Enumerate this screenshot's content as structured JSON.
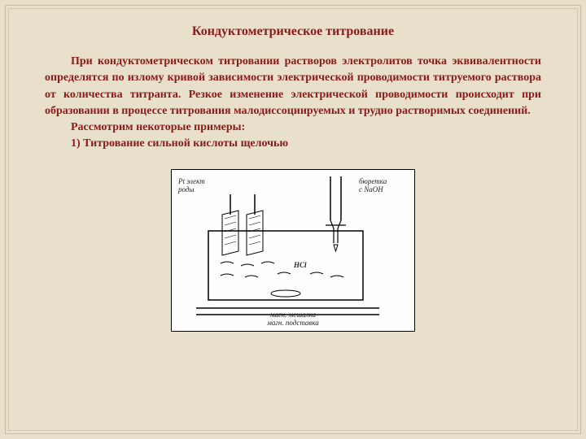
{
  "title": "Кондуктометрическое титрование",
  "paragraphs": {
    "p1": "При кондуктометрическом титровании растворов электролитов точка эквивалентности определятся по излому кривой зависимости электрической проводимости титруемого раствора от количества титранта. Резкое изменение электрической проводимости происходит при образовании в процессе титрования малодиссоциируемых и трудно растворимых соединений.",
    "p2": "Рассмотрим некоторые примеры:",
    "p3": "1) Титрование сильной кислоты щелочью"
  },
  "diagram": {
    "label_left_top": "Pt элект\nроды",
    "label_right_top": "бюретка\nс NaOH",
    "label_center": "HCl",
    "label_bottom": "магн. мешалка\nмагн. подставка",
    "colors": {
      "line": "#000000",
      "bg": "#fefefe"
    }
  },
  "style": {
    "background": "#e8e0ca",
    "text_color": "#8b1a1a",
    "title_fontsize": 16,
    "body_fontsize": 14
  }
}
